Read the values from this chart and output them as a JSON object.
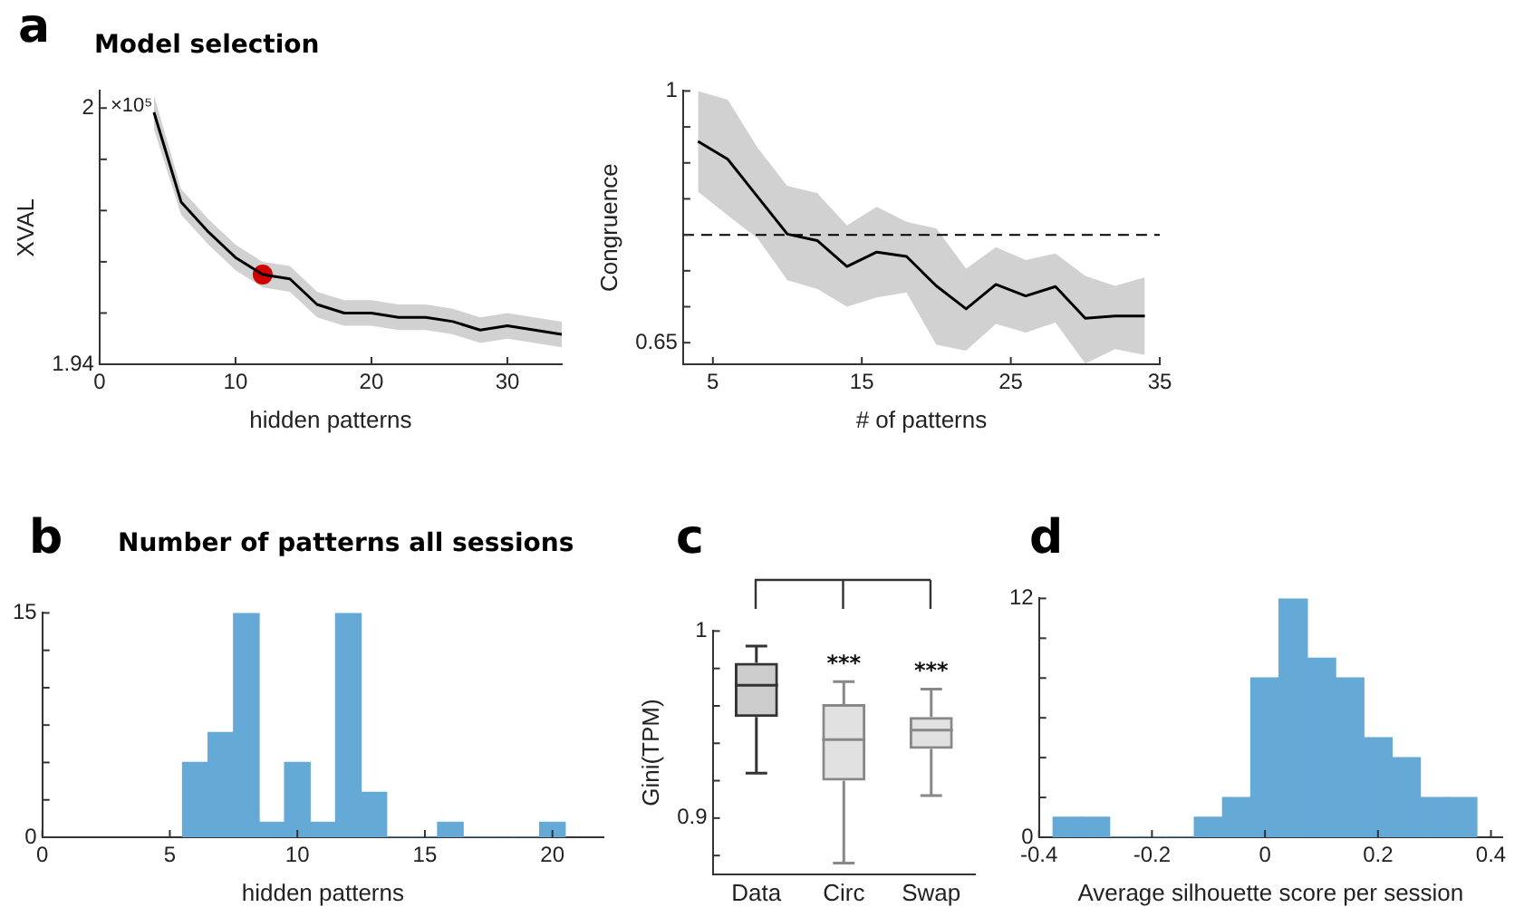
{
  "chart_data": [
    {
      "type": "line",
      "title": "Model selection",
      "annotations": [
        "a",
        "×10⁵"
      ],
      "xlabel": "hidden patterns",
      "ylabel": "XVAL",
      "x": [
        4,
        6,
        8,
        10,
        12,
        14,
        16,
        18,
        20,
        22,
        24,
        26,
        28,
        30,
        32,
        34
      ],
      "series": [
        {
          "color": "#000000",
          "values": [
            1.999,
            1.978,
            1.971,
            1.965,
            1.961,
            1.96,
            1.954,
            1.952,
            1.952,
            1.951,
            1.951,
            1.95,
            1.948,
            1.949,
            1.948,
            1.947
          ],
          "upper": [
            2.003,
            1.981,
            1.974,
            1.968,
            1.964,
            1.963,
            1.957,
            1.955,
            1.955,
            1.954,
            1.954,
            1.953,
            1.951,
            1.952,
            1.951,
            1.95
          ],
          "lower": [
            1.995,
            1.975,
            1.968,
            1.962,
            1.958,
            1.957,
            1.951,
            1.949,
            1.949,
            1.948,
            1.948,
            1.947,
            1.945,
            1.946,
            1.945,
            1.944
          ]
        },
        {
          "type": "scatter",
          "marker": "circle",
          "color": "#ff0000",
          "x": [
            12
          ],
          "values": [
            1.961
          ]
        }
      ],
      "xlim": [
        0,
        34
      ],
      "xticks": [
        0,
        10,
        20,
        30
      ],
      "ylim": [
        1.94,
        2.004
      ],
      "yticks": [
        1.94,
        {
          "value": 1.952,
          "label": null
        },
        {
          "value": 1.964,
          "label": null
        },
        {
          "value": 1.976,
          "label": null
        },
        {
          "value": 1.988,
          "label": null
        },
        2
      ],
      "grid": false,
      "legend": false,
      "marker": "none"
    },
    {
      "type": "line",
      "xlabel": "# of patterns",
      "ylabel": "Congruence",
      "x": [
        4,
        6,
        8,
        10,
        12,
        14,
        16,
        18,
        20,
        22,
        24,
        26,
        28,
        30,
        32,
        34
      ],
      "series": [
        {
          "color": "#000000",
          "values": [
            0.93,
            0.905,
            0.853,
            0.801,
            0.792,
            0.756,
            0.776,
            0.77,
            0.729,
            0.697,
            0.731,
            0.715,
            0.728,
            0.684,
            0.687,
            0.687
          ],
          "upper": [
            1.0,
            0.988,
            0.921,
            0.868,
            0.858,
            0.813,
            0.839,
            0.818,
            0.809,
            0.753,
            0.783,
            0.765,
            0.774,
            0.743,
            0.729,
            0.741
          ],
          "lower": [
            0.86,
            0.827,
            0.795,
            0.737,
            0.725,
            0.7,
            0.713,
            0.72,
            0.647,
            0.639,
            0.676,
            0.664,
            0.678,
            0.621,
            0.641,
            0.633
          ]
        }
      ],
      "ref_lines": [
        {
          "axis": "y",
          "value": 0.8,
          "line_style": "dashed",
          "color": "#000000"
        }
      ],
      "xlim": [
        3,
        35
      ],
      "xticks": [
        5,
        15,
        25,
        35
      ],
      "ylim": [
        0.62,
        1
      ],
      "yticks": [
        0.65,
        {
          "value": 0.7,
          "label": null
        },
        {
          "value": 0.75,
          "label": null
        },
        {
          "value": 0.8,
          "label": null
        },
        {
          "value": 0.85,
          "label": null
        },
        {
          "value": 0.9,
          "label": null
        },
        {
          "value": 0.95,
          "label": null
        },
        1
      ],
      "grid": false,
      "legend": false,
      "marker": "none"
    },
    {
      "type": "histogram",
      "title": "Number of patterns all sessions",
      "annotations": [
        "b"
      ],
      "xlabel": "hidden patterns",
      "bins": [
        5.5,
        6.5,
        7.5,
        8.5,
        9.5,
        10.5,
        11.5,
        12.5,
        13.5,
        14.5,
        15.5,
        16.5,
        17.5,
        18.5,
        19.5,
        20.5
      ],
      "values": [
        5,
        7,
        15,
        1,
        5,
        1,
        15,
        3,
        0,
        0,
        1,
        0,
        0,
        0,
        1
      ],
      "color": "#65a9d7",
      "xlim": [
        0,
        22
      ],
      "xticks": [
        0,
        5,
        10,
        15,
        20
      ],
      "ylim": [
        0,
        15
      ],
      "yticks": [
        0,
        {
          "value": 2.5,
          "label": null
        },
        {
          "value": 5,
          "label": null
        },
        {
          "value": 7.5,
          "label": null
        },
        {
          "value": 10,
          "label": null
        },
        {
          "value": 12.5,
          "label": null
        },
        15
      ],
      "grid": false,
      "legend": false
    },
    {
      "type": "box",
      "annotations": [
        "c",
        "***",
        "***"
      ],
      "ylabel": "Gini(TPM)",
      "categories": [
        "Data",
        "Circ",
        "Swap"
      ],
      "boxes": [
        {
          "low": 0.924,
          "q1": 0.954,
          "median": 0.971,
          "q3": 0.983,
          "high": 0.992
        },
        {
          "low": 0.876,
          "q1": 0.92,
          "median": 0.942,
          "q3": 0.961,
          "high": 0.973
        },
        {
          "low": 0.912,
          "q1": 0.937,
          "median": 0.947,
          "q3": 0.954,
          "high": 0.969
        }
      ],
      "colors": [
        "#333333",
        "#888888",
        "#888888"
      ],
      "ylim": [
        0.87,
        1
      ],
      "yticks": [
        {
          "value": 0.88,
          "label": null
        },
        0.9,
        {
          "value": 0.92,
          "label": null
        },
        {
          "value": 0.94,
          "label": null
        },
        {
          "value": 0.96,
          "label": null
        },
        {
          "value": 0.98,
          "label": null
        },
        1
      ],
      "grid": false,
      "legend": false
    },
    {
      "type": "histogram",
      "annotations": [
        "d"
      ],
      "xlabel": "Average silhouette score per session",
      "bins": [
        -0.375,
        -0.325,
        -0.275,
        -0.225,
        -0.175,
        -0.125,
        -0.075,
        -0.025,
        0.025,
        0.075,
        0.125,
        0.175,
        0.225,
        0.275,
        0.325,
        0.375
      ],
      "values": [
        1,
        1,
        0,
        0,
        0,
        1,
        2,
        8,
        12,
        9,
        8,
        5,
        4,
        2,
        2
      ],
      "color": "#65a9d7",
      "xlim": [
        -0.4,
        0.42
      ],
      "xticks": [
        -0.4,
        -0.2,
        0,
        0.2,
        0.4
      ],
      "ylim": [
        0,
        12
      ],
      "yticks": [
        0,
        {
          "value": 2,
          "label": null
        },
        {
          "value": 4,
          "label": null
        },
        {
          "value": 6,
          "label": null
        },
        {
          "value": 8,
          "label": null
        },
        {
          "value": 10,
          "label": null
        },
        12
      ],
      "grid": false,
      "legend": false
    }
  ]
}
